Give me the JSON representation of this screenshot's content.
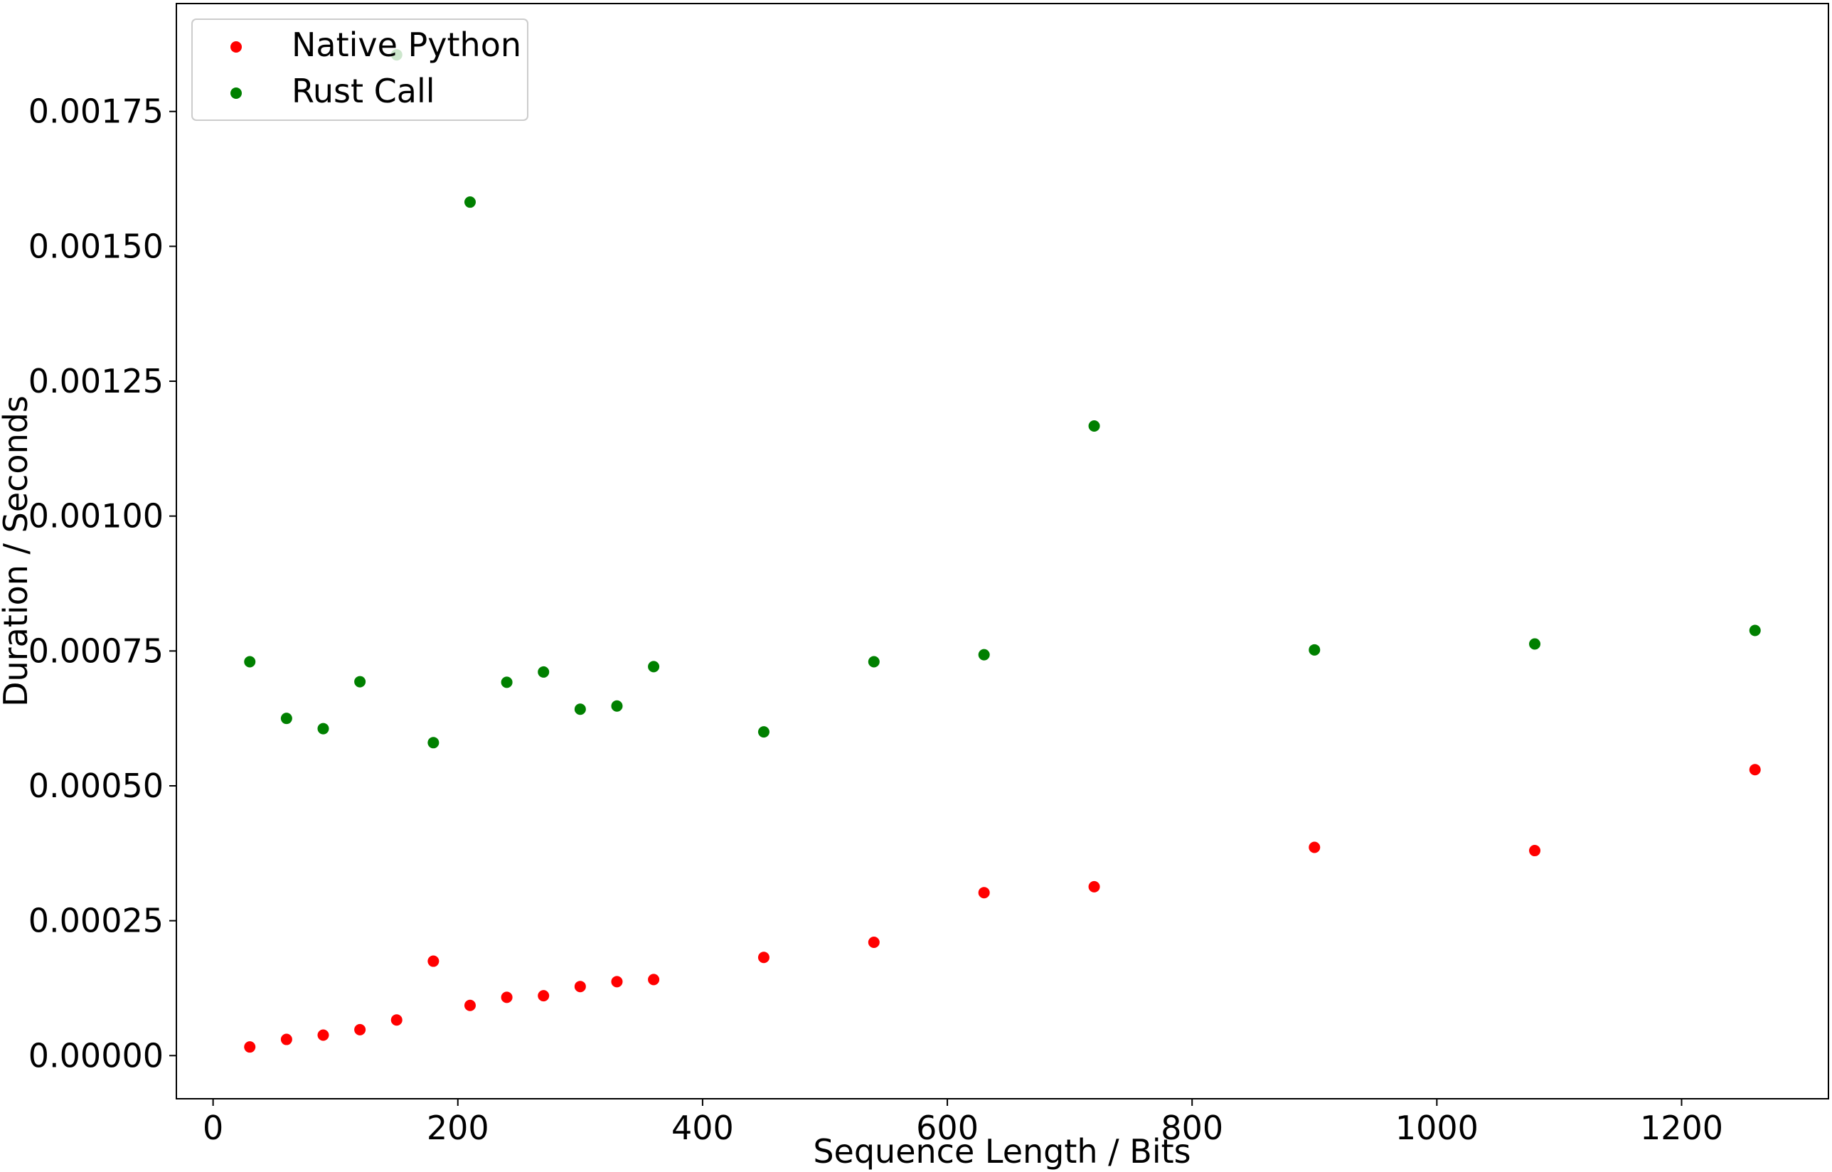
{
  "chart_data": {
    "type": "scatter",
    "title": "",
    "xlabel": "Sequence Length / Bits",
    "ylabel": "Duration / Seconds",
    "xlim": [
      -30,
      1320
    ],
    "ylim": [
      -8e-05,
      0.00195
    ],
    "x_ticks": [
      0,
      200,
      400,
      600,
      800,
      1000,
      1200
    ],
    "x_tick_labels": [
      "0",
      "200",
      "400",
      "600",
      "800",
      "1000",
      "1200"
    ],
    "y_ticks": [
      0.0,
      0.00025,
      0.0005,
      0.00075,
      0.001,
      0.00125,
      0.0015,
      0.00175
    ],
    "y_tick_labels": [
      "0.00000",
      "0.00025",
      "0.00050",
      "0.00075",
      "0.00100",
      "0.00125",
      "0.00150",
      "0.00175"
    ],
    "grid": false,
    "legend_position": "top-left",
    "series": [
      {
        "name": "Native Python",
        "color": "#ff0000",
        "points": [
          {
            "x": 30,
            "y": 1.6e-05
          },
          {
            "x": 60,
            "y": 3e-05
          },
          {
            "x": 90,
            "y": 3.8e-05
          },
          {
            "x": 120,
            "y": 4.8e-05
          },
          {
            "x": 150,
            "y": 6.6e-05
          },
          {
            "x": 180,
            "y": 0.000175
          },
          {
            "x": 210,
            "y": 9.3e-05
          },
          {
            "x": 240,
            "y": 0.000108
          },
          {
            "x": 270,
            "y": 0.000111
          },
          {
            "x": 300,
            "y": 0.000128
          },
          {
            "x": 330,
            "y": 0.000137
          },
          {
            "x": 360,
            "y": 0.000141
          },
          {
            "x": 450,
            "y": 0.000182
          },
          {
            "x": 540,
            "y": 0.00021
          },
          {
            "x": 630,
            "y": 0.000302
          },
          {
            "x": 720,
            "y": 0.000313
          },
          {
            "x": 900,
            "y": 0.000386
          },
          {
            "x": 1080,
            "y": 0.00038
          },
          {
            "x": 1260,
            "y": 0.00053
          }
        ]
      },
      {
        "name": "Rust Call",
        "color": "#008000",
        "points": [
          {
            "x": 30,
            "y": 0.00073
          },
          {
            "x": 60,
            "y": 0.000625
          },
          {
            "x": 90,
            "y": 0.000606
          },
          {
            "x": 120,
            "y": 0.000693
          },
          {
            "x": 150,
            "y": 0.001855
          },
          {
            "x": 180,
            "y": 0.00058
          },
          {
            "x": 210,
            "y": 0.001582
          },
          {
            "x": 240,
            "y": 0.000692
          },
          {
            "x": 270,
            "y": 0.000711
          },
          {
            "x": 300,
            "y": 0.000642
          },
          {
            "x": 330,
            "y": 0.000648
          },
          {
            "x": 360,
            "y": 0.000721
          },
          {
            "x": 450,
            "y": 0.0006
          },
          {
            "x": 540,
            "y": 0.00073
          },
          {
            "x": 630,
            "y": 0.000743
          },
          {
            "x": 720,
            "y": 0.001167
          },
          {
            "x": 900,
            "y": 0.000752
          },
          {
            "x": 1080,
            "y": 0.000763
          },
          {
            "x": 1260,
            "y": 0.000788
          }
        ]
      }
    ]
  }
}
